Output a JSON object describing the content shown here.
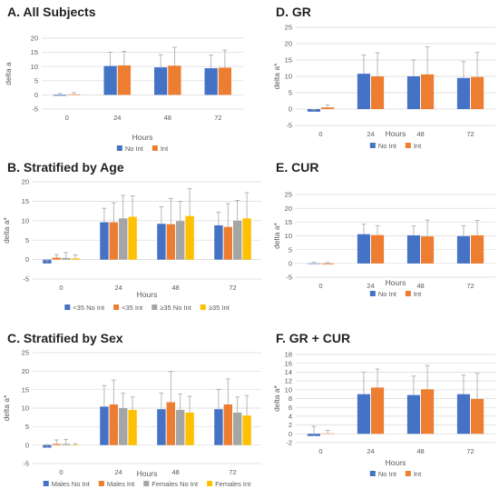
{
  "colors": {
    "blue": "#4472C4",
    "orange": "#ED7D31",
    "gray": "#A5A5A5",
    "yellow": "#FFC000",
    "grid": "#D9D9D9",
    "err": "#A6A6A6"
  },
  "chart_data": [
    {
      "id": "A",
      "type": "bar",
      "title": "A. All Subjects",
      "xlabel": "Hours",
      "ylabel": "delta a",
      "categories": [
        "0",
        "24",
        "48",
        "72"
      ],
      "ylim": [
        -5,
        20
      ],
      "yticks": [
        -5,
        0,
        5,
        10,
        15,
        20
      ],
      "grid": true,
      "legend": "bottom",
      "series": [
        {
          "name": "No Int",
          "color": "#4472C4",
          "values": [
            -0.3,
            10.2,
            9.7,
            9.4
          ],
          "errors": [
            0.8,
            4.8,
            4.5,
            4.6
          ]
        },
        {
          "name": "Int",
          "color": "#ED7D31",
          "values": [
            0.2,
            10.4,
            10.3,
            9.6
          ],
          "errors": [
            0.6,
            5.0,
            6.5,
            6.2
          ]
        }
      ]
    },
    {
      "id": "B",
      "type": "bar",
      "title": "B. Stratified by Age",
      "xlabel": "Hours",
      "ylabel": "delta a*",
      "categories": [
        "0",
        "24",
        "48",
        "72"
      ],
      "ylim": [
        -5,
        20
      ],
      "yticks": [
        -5,
        0,
        5,
        10,
        15,
        20
      ],
      "grid": true,
      "legend": "bottom",
      "series": [
        {
          "name": "<35 No Int",
          "color": "#4472C4",
          "values": [
            -1.0,
            9.6,
            9.2,
            8.8
          ],
          "errors": [
            0.8,
            3.6,
            4.4,
            3.4
          ]
        },
        {
          "name": "<35 Int",
          "color": "#ED7D31",
          "values": [
            0.5,
            9.6,
            9.1,
            8.4
          ],
          "errors": [
            0.8,
            5.0,
            6.6,
            6.0
          ]
        },
        {
          "name": "≥35 No Int",
          "color": "#A5A5A5",
          "values": [
            0.4,
            10.6,
            9.9,
            10.0
          ],
          "errors": [
            1.4,
            5.9,
            5.1,
            5.2
          ]
        },
        {
          "name": "≥35 Int",
          "color": "#FFC000",
          "values": [
            0.3,
            11.0,
            11.2,
            10.6
          ],
          "errors": [
            0.9,
            5.4,
            7.0,
            6.6
          ]
        }
      ]
    },
    {
      "id": "C",
      "type": "bar",
      "title": "C. Stratified by Sex",
      "xlabel": "Hours",
      "ylabel": "delta a*",
      "categories": [
        "0",
        "24",
        "48",
        "72"
      ],
      "ylim": [
        -5,
        25
      ],
      "yticks": [
        -5,
        0,
        5,
        10,
        15,
        20,
        25
      ],
      "grid": true,
      "legend": "bottom",
      "series": [
        {
          "name": "Males No Int",
          "color": "#4472C4",
          "values": [
            -0.7,
            10.4,
            9.7,
            9.7
          ],
          "errors": [
            0.8,
            5.7,
            4.4,
            5.4
          ]
        },
        {
          "name": "Males Int",
          "color": "#ED7D31",
          "values": [
            0.3,
            11.0,
            11.6,
            11.0
          ],
          "errors": [
            1.1,
            6.6,
            8.3,
            6.9
          ]
        },
        {
          "name": "Females No Int",
          "color": "#A5A5A5",
          "values": [
            0.3,
            10.0,
            9.5,
            8.8
          ],
          "errors": [
            1.2,
            4.0,
            4.3,
            4.2
          ]
        },
        {
          "name": "Females Int",
          "color": "#FFC000",
          "values": [
            -0.1,
            9.5,
            8.8,
            8.0
          ],
          "errors": [
            0.5,
            3.5,
            4.4,
            5.4
          ]
        }
      ]
    },
    {
      "id": "D",
      "type": "bar",
      "title": "D. GR",
      "xlabel": "Hours",
      "ylabel": "delta a*",
      "categories": [
        "0",
        "24",
        "48",
        "72"
      ],
      "ylim": [
        -5,
        25
      ],
      "yticks": [
        -5,
        0,
        5,
        10,
        15,
        20,
        25
      ],
      "grid": true,
      "legend": "bottom",
      "series": [
        {
          "name": "No Int",
          "color": "#4472C4",
          "values": [
            -0.8,
            10.8,
            10.0,
            9.5
          ],
          "errors": [
            0.7,
            5.7,
            5.0,
            5.0
          ]
        },
        {
          "name": "Int",
          "color": "#ED7D31",
          "values": [
            0.5,
            10.0,
            10.6,
            9.8
          ],
          "errors": [
            0.8,
            7.2,
            8.4,
            7.5
          ]
        }
      ]
    },
    {
      "id": "E",
      "type": "bar",
      "title": "E. CUR",
      "xlabel": "Hours",
      "ylabel": "delta a*",
      "categories": [
        "0",
        "24",
        "48",
        "72"
      ],
      "ylim": [
        -5,
        25
      ],
      "yticks": [
        -5,
        0,
        5,
        10,
        15,
        20,
        25
      ],
      "grid": true,
      "legend": "bottom",
      "series": [
        {
          "name": "No Int",
          "color": "#4472C4",
          "values": [
            -0.2,
            10.6,
            10.2,
            9.9
          ],
          "errors": [
            0.6,
            3.6,
            3.4,
            3.8
          ]
        },
        {
          "name": "Int",
          "color": "#ED7D31",
          "values": [
            -0.3,
            10.3,
            9.8,
            10.2
          ],
          "errors": [
            0.6,
            3.4,
            5.9,
            5.4
          ]
        }
      ]
    },
    {
      "id": "F",
      "type": "bar",
      "title": "F. GR + CUR",
      "xlabel": "Hours",
      "ylabel": "delta a*",
      "categories": [
        "0",
        "24",
        "48",
        "72"
      ],
      "ylim": [
        -2,
        18
      ],
      "yticks": [
        -2,
        0,
        2,
        4,
        6,
        8,
        10,
        12,
        14,
        16,
        18
      ],
      "grid": true,
      "legend": "bottom",
      "series": [
        {
          "name": "No Int",
          "color": "#4472C4",
          "values": [
            -0.5,
            9.0,
            8.8,
            9.0
          ],
          "errors": [
            2.2,
            5.0,
            4.3,
            4.3
          ]
        },
        {
          "name": "Int",
          "color": "#ED7D31",
          "values": [
            0.1,
            10.5,
            10.1,
            7.9
          ],
          "errors": [
            0.7,
            4.2,
            5.4,
            5.8
          ]
        }
      ]
    }
  ]
}
